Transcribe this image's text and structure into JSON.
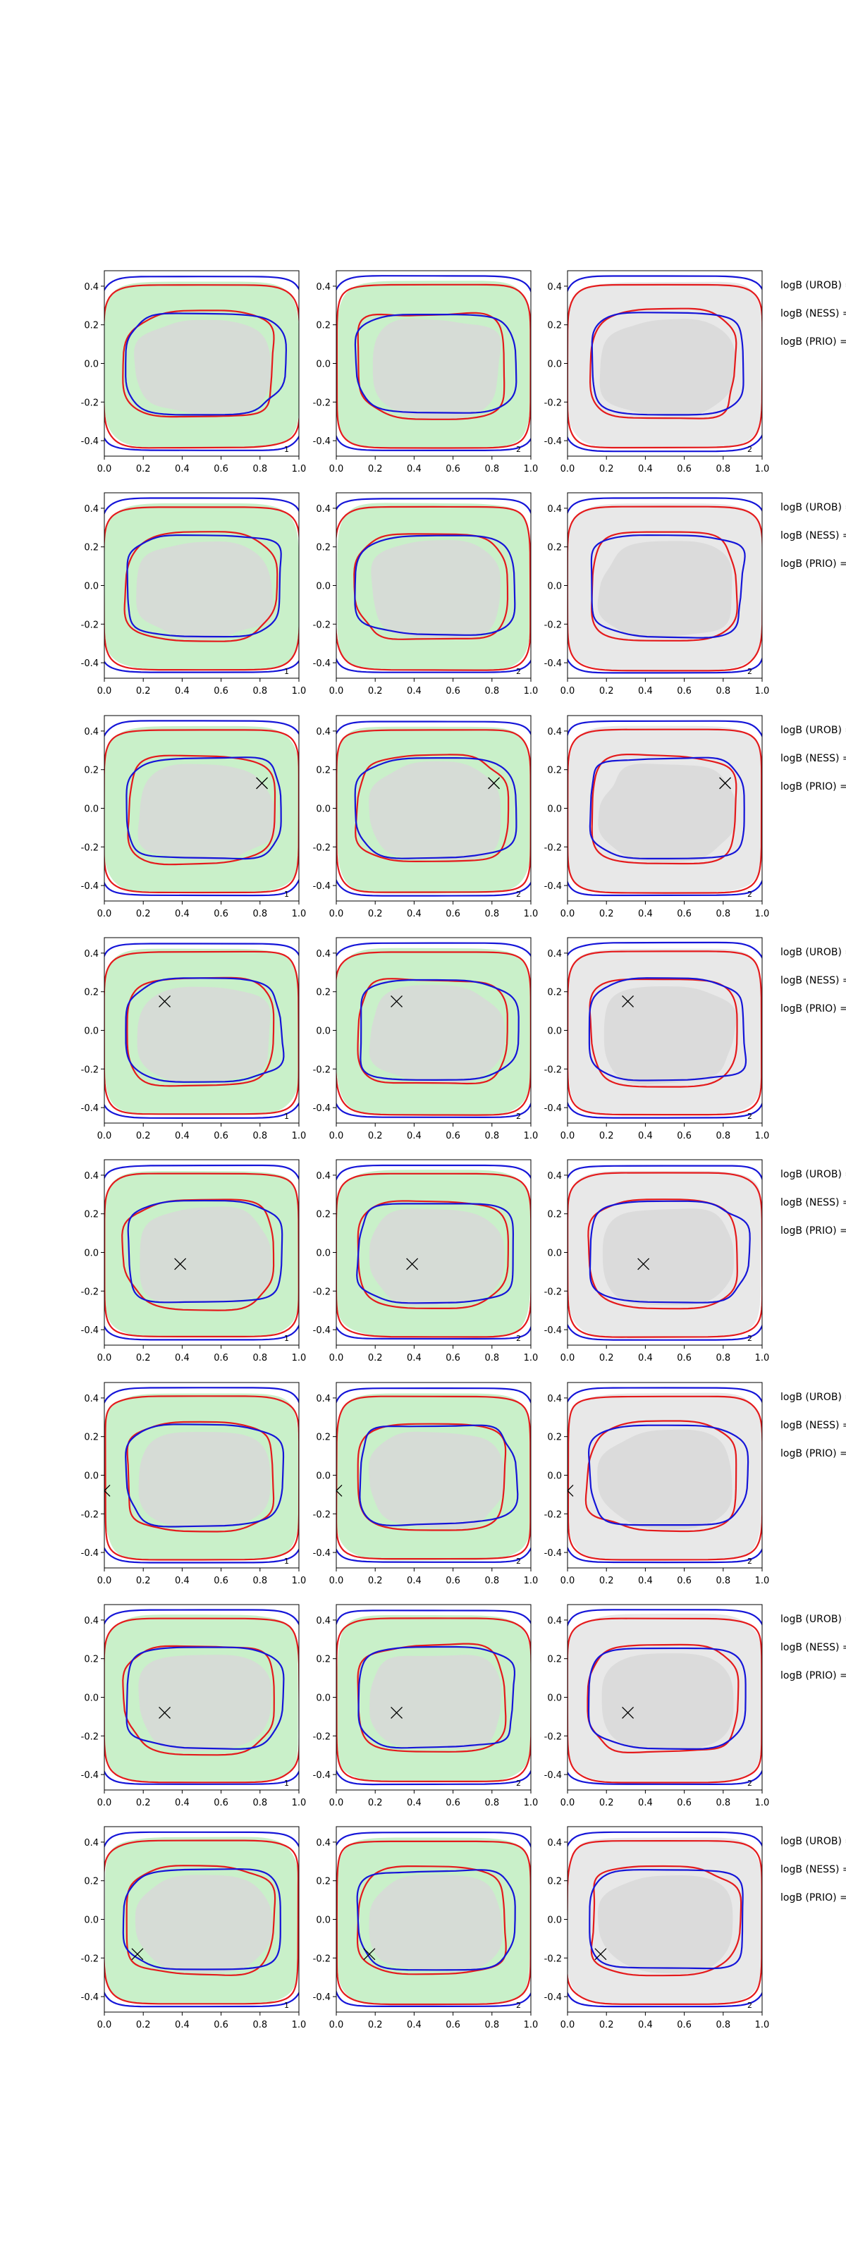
{
  "chart_data": {
    "type": "contour",
    "layout": {
      "rows": 8,
      "cols": 3
    },
    "x_ticks": [
      "0.0",
      "0.2",
      "0.4",
      "0.6",
      "0.8",
      "1.0"
    ],
    "y_ticks": [
      "0.4",
      "0.2",
      "0.0",
      "-0.2",
      "-0.4"
    ],
    "xlim": [
      0.0,
      1.0
    ],
    "ylim": [
      -0.48,
      0.48
    ],
    "grid": false,
    "contour_colors": {
      "red": "#e41a1c",
      "blue": "#1515d8"
    },
    "fill_colors": {
      "green": "#c9f0c9",
      "gray": "#d8d8d8",
      "light_gray": "#e8e8e8"
    },
    "column_fills": [
      "green",
      "green",
      "gray"
    ],
    "panel_corner_labels": [
      "1",
      "2",
      "2"
    ],
    "row_annotations": [
      {
        "texts": [
          "logB (UROB) =",
          "logB (NESS) =",
          "logB (PRIO) ="
        ],
        "marker": null
      },
      {
        "texts": [
          "logB (UROB) =",
          "logB (NESS) =",
          "logB (PRIO) ="
        ],
        "marker": null
      },
      {
        "texts": [
          "logB (UROB) =",
          "logB (NESS) =",
          "logB (PRIO) ="
        ],
        "marker": {
          "x": 0.81,
          "y": 0.13
        }
      },
      {
        "texts": [
          "logB (UROB) =",
          "logB (NESS) =",
          "logB (PRIO) ="
        ],
        "marker": {
          "x": 0.31,
          "y": 0.15
        }
      },
      {
        "texts": [
          "logB (UROB) =",
          "logB (NESS) =",
          "logB (PRIO) ="
        ],
        "marker": {
          "x": 0.39,
          "y": -0.06
        }
      },
      {
        "texts": [
          "logB (UROB) =",
          "logB (NESS) =",
          "logB (PRIO) ="
        ],
        "marker": {
          "x": 0.0,
          "y": -0.08
        }
      },
      {
        "texts": [
          "logB (UROB) =",
          "logB (NESS) =",
          "logB (PRIO) ="
        ],
        "marker": {
          "x": 0.31,
          "y": -0.08
        }
      },
      {
        "texts": [
          "logB (UROB) =",
          "logB (NESS) =",
          "logB (PRIO) ="
        ],
        "marker": {
          "x": 0.17,
          "y": -0.18
        }
      }
    ]
  }
}
